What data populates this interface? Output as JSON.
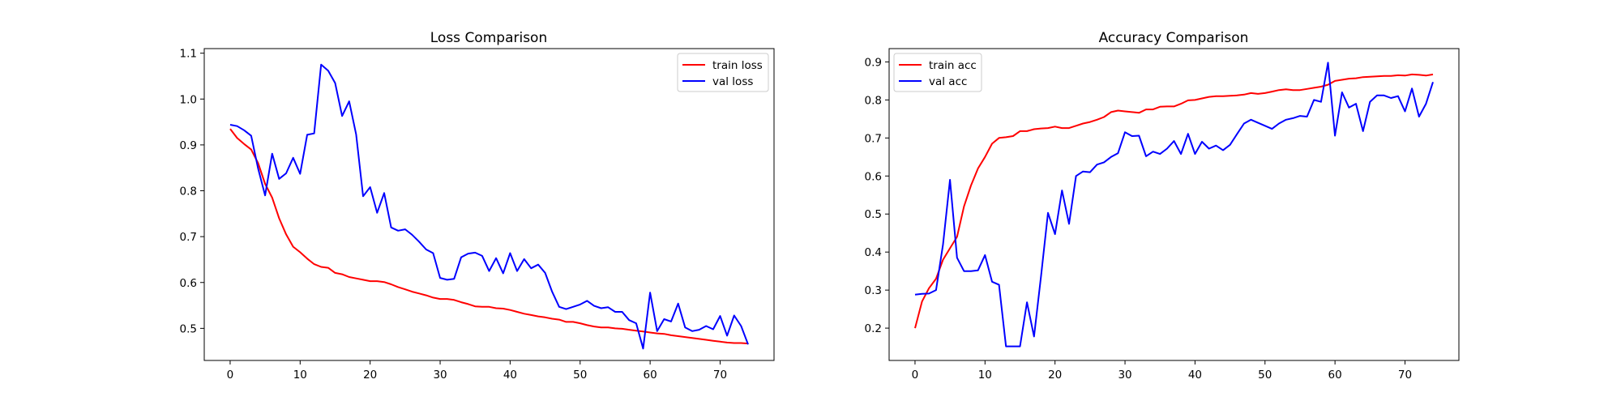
{
  "chart_data": [
    {
      "type": "line",
      "title": "Loss Comparison",
      "xlabel": "",
      "ylabel": "",
      "xlim": [
        -3.7,
        77.7
      ],
      "ylim": [
        0.43,
        1.11
      ],
      "xticks": [
        "0",
        "10",
        "20",
        "30",
        "40",
        "50",
        "60",
        "70"
      ],
      "yticks": [
        "0.5",
        "0.6",
        "0.7",
        "0.8",
        "0.9",
        "1.0",
        "1.1"
      ],
      "grid": false,
      "legend": "top-right",
      "series": [
        {
          "name": "train loss",
          "color": "#ff0000",
          "x": [
            0,
            1,
            2,
            3,
            4,
            5,
            6,
            7,
            8,
            9,
            10,
            11,
            12,
            13,
            14,
            15,
            16,
            17,
            18,
            19,
            20,
            21,
            22,
            23,
            24,
            25,
            26,
            27,
            28,
            29,
            30,
            31,
            32,
            33,
            34,
            35,
            36,
            37,
            38,
            39,
            40,
            41,
            42,
            43,
            44,
            45,
            46,
            47,
            48,
            49,
            50,
            51,
            52,
            53,
            54,
            55,
            56,
            57,
            58,
            59,
            60,
            61,
            62,
            63,
            64,
            65,
            66,
            67,
            68,
            69,
            70,
            71,
            72,
            73,
            74
          ],
          "y": [
            0.935,
            0.915,
            0.902,
            0.89,
            0.86,
            0.815,
            0.785,
            0.74,
            0.705,
            0.678,
            0.666,
            0.652,
            0.64,
            0.634,
            0.632,
            0.621,
            0.618,
            0.612,
            0.609,
            0.606,
            0.603,
            0.603,
            0.601,
            0.596,
            0.59,
            0.585,
            0.58,
            0.576,
            0.572,
            0.567,
            0.564,
            0.564,
            0.562,
            0.557,
            0.553,
            0.548,
            0.547,
            0.547,
            0.544,
            0.543,
            0.54,
            0.536,
            0.532,
            0.529,
            0.526,
            0.524,
            0.521,
            0.519,
            0.514,
            0.514,
            0.511,
            0.507,
            0.504,
            0.502,
            0.502,
            0.5,
            0.499,
            0.497,
            0.495,
            0.493,
            0.491,
            0.489,
            0.488,
            0.485,
            0.483,
            0.481,
            0.479,
            0.477,
            0.475,
            0.473,
            0.471,
            0.469,
            0.468,
            0.468,
            0.467
          ]
        },
        {
          "name": "val loss",
          "color": "#0000ff",
          "x": [
            0,
            1,
            2,
            3,
            4,
            5,
            6,
            7,
            8,
            9,
            10,
            11,
            12,
            13,
            14,
            15,
            16,
            17,
            18,
            19,
            20,
            21,
            22,
            23,
            24,
            25,
            26,
            27,
            28,
            29,
            30,
            31,
            32,
            33,
            34,
            35,
            36,
            37,
            38,
            39,
            40,
            41,
            42,
            43,
            44,
            45,
            46,
            47,
            48,
            49,
            50,
            51,
            52,
            53,
            54,
            55,
            56,
            57,
            58,
            59,
            60,
            61,
            62,
            63,
            64,
            65,
            66,
            67,
            68,
            69,
            70,
            71,
            72,
            73,
            74
          ],
          "y": [
            0.944,
            0.941,
            0.932,
            0.92,
            0.848,
            0.79,
            0.881,
            0.826,
            0.838,
            0.872,
            0.837,
            0.922,
            0.925,
            1.075,
            1.062,
            1.035,
            0.963,
            0.995,
            0.923,
            0.788,
            0.808,
            0.752,
            0.795,
            0.72,
            0.713,
            0.716,
            0.704,
            0.689,
            0.672,
            0.664,
            0.61,
            0.606,
            0.608,
            0.655,
            0.663,
            0.665,
            0.658,
            0.625,
            0.653,
            0.62,
            0.664,
            0.625,
            0.651,
            0.631,
            0.639,
            0.621,
            0.58,
            0.547,
            0.542,
            0.547,
            0.552,
            0.56,
            0.549,
            0.544,
            0.546,
            0.536,
            0.536,
            0.518,
            0.511,
            0.456,
            0.578,
            0.494,
            0.52,
            0.515,
            0.554,
            0.502,
            0.494,
            0.497,
            0.505,
            0.498,
            0.527,
            0.484,
            0.528,
            0.505,
            0.465
          ]
        }
      ]
    },
    {
      "type": "line",
      "title": "Accuracy Comparison",
      "xlabel": "",
      "ylabel": "",
      "xlim": [
        -3.7,
        77.7
      ],
      "ylim": [
        0.115,
        0.935
      ],
      "xticks": [
        "0",
        "10",
        "20",
        "30",
        "40",
        "50",
        "60",
        "70"
      ],
      "yticks": [
        "0.2",
        "0.3",
        "0.4",
        "0.5",
        "0.6",
        "0.7",
        "0.8",
        "0.9"
      ],
      "grid": false,
      "legend": "top-left",
      "series": [
        {
          "name": "train acc",
          "color": "#ff0000",
          "x": [
            0,
            1,
            2,
            3,
            4,
            5,
            6,
            7,
            8,
            9,
            10,
            11,
            12,
            13,
            14,
            15,
            16,
            17,
            18,
            19,
            20,
            21,
            22,
            23,
            24,
            25,
            26,
            27,
            28,
            29,
            30,
            31,
            32,
            33,
            34,
            35,
            36,
            37,
            38,
            39,
            40,
            41,
            42,
            43,
            44,
            45,
            46,
            47,
            48,
            49,
            50,
            51,
            52,
            53,
            54,
            55,
            56,
            57,
            58,
            59,
            60,
            61,
            62,
            63,
            64,
            65,
            66,
            67,
            68,
            69,
            70,
            71,
            72,
            73,
            74
          ],
          "y": [
            0.2,
            0.27,
            0.305,
            0.33,
            0.38,
            0.41,
            0.44,
            0.52,
            0.575,
            0.62,
            0.65,
            0.685,
            0.7,
            0.702,
            0.705,
            0.718,
            0.718,
            0.723,
            0.725,
            0.726,
            0.73,
            0.726,
            0.726,
            0.732,
            0.738,
            0.742,
            0.748,
            0.755,
            0.768,
            0.772,
            0.77,
            0.768,
            0.766,
            0.775,
            0.775,
            0.782,
            0.783,
            0.783,
            0.79,
            0.799,
            0.8,
            0.804,
            0.808,
            0.81,
            0.81,
            0.811,
            0.812,
            0.814,
            0.818,
            0.816,
            0.818,
            0.822,
            0.826,
            0.828,
            0.826,
            0.826,
            0.829,
            0.832,
            0.835,
            0.84,
            0.85,
            0.853,
            0.856,
            0.857,
            0.86,
            0.861,
            0.862,
            0.863,
            0.863,
            0.865,
            0.864,
            0.867,
            0.866,
            0.864,
            0.867
          ]
        },
        {
          "name": "val acc",
          "color": "#0000ff",
          "x": [
            0,
            1,
            2,
            3,
            4,
            5,
            6,
            7,
            8,
            9,
            10,
            11,
            12,
            13,
            14,
            15,
            16,
            17,
            18,
            19,
            20,
            21,
            22,
            23,
            24,
            25,
            26,
            27,
            28,
            29,
            30,
            31,
            32,
            33,
            34,
            35,
            36,
            37,
            38,
            39,
            40,
            41,
            42,
            43,
            44,
            45,
            46,
            47,
            48,
            49,
            50,
            51,
            52,
            53,
            54,
            55,
            56,
            57,
            58,
            59,
            60,
            61,
            62,
            63,
            64,
            65,
            66,
            67,
            68,
            69,
            70,
            71,
            72,
            73,
            74
          ],
          "y": [
            0.288,
            0.29,
            0.291,
            0.3,
            0.42,
            0.59,
            0.385,
            0.35,
            0.35,
            0.352,
            0.392,
            0.322,
            0.314,
            0.152,
            0.152,
            0.152,
            0.268,
            0.178,
            0.336,
            0.503,
            0.447,
            0.562,
            0.474,
            0.6,
            0.612,
            0.61,
            0.63,
            0.636,
            0.65,
            0.66,
            0.715,
            0.705,
            0.706,
            0.652,
            0.664,
            0.658,
            0.672,
            0.692,
            0.658,
            0.711,
            0.658,
            0.69,
            0.672,
            0.68,
            0.668,
            0.682,
            0.71,
            0.738,
            0.748,
            0.74,
            0.732,
            0.724,
            0.738,
            0.748,
            0.752,
            0.758,
            0.756,
            0.8,
            0.795,
            0.898,
            0.706,
            0.82,
            0.78,
            0.79,
            0.718,
            0.795,
            0.812,
            0.812,
            0.805,
            0.81,
            0.77,
            0.83,
            0.756,
            0.79,
            0.847
          ]
        }
      ]
    }
  ]
}
